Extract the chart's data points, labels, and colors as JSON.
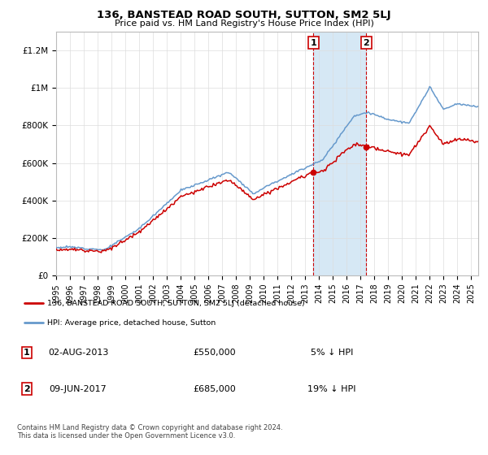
{
  "title": "136, BANSTEAD ROAD SOUTH, SUTTON, SM2 5LJ",
  "subtitle": "Price paid vs. HM Land Registry's House Price Index (HPI)",
  "sale1_date": "02-AUG-2013",
  "sale1_price": 550000,
  "sale1_label": "5% ↓ HPI",
  "sale2_date": "09-JUN-2017",
  "sale2_price": 685000,
  "sale2_label": "19% ↓ HPI",
  "legend_line1": "136, BANSTEAD ROAD SOUTH, SUTTON, SM2 5LJ (detached house)",
  "legend_line2": "HPI: Average price, detached house, Sutton",
  "footnote": "Contains HM Land Registry data © Crown copyright and database right 2024.\nThis data is licensed under the Open Government Licence v3.0.",
  "line_red": "#cc0000",
  "line_blue": "#6699cc",
  "shade_color": "#d6e8f5",
  "ylim": [
    0,
    1300000
  ],
  "yticks": [
    0,
    200000,
    400000,
    600000,
    800000,
    1000000,
    1200000
  ],
  "ytick_labels": [
    "£0",
    "£200K",
    "£400K",
    "£600K",
    "£800K",
    "£1M",
    "£1.2M"
  ],
  "xmin": 1995,
  "xmax": 2025.5,
  "sale1_yr": 2013.583,
  "sale2_yr": 2017.417
}
